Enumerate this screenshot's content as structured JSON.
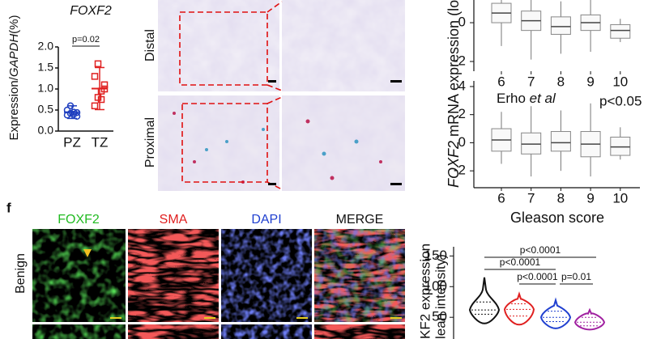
{
  "chart_data": [
    {
      "type": "dot",
      "title": "FOXF2",
      "y_label": [
        "Expression/",
        "GAPDH",
        "(%)"
      ],
      "categories": [
        "PZ",
        "TZ"
      ],
      "values": [
        [
          0.38,
          0.42,
          0.45,
          0.35,
          0.5,
          0.6,
          0.4,
          0.44
        ],
        [
          0.6,
          0.8,
          0.95,
          1.0,
          1.3,
          1.6,
          0.75,
          1.1
        ]
      ],
      "colors": [
        "#1f3fbf",
        "#e02020"
      ],
      "means": [
        0.45,
        1.01
      ],
      "errors": [
        0.15,
        0.5
      ],
      "ylim": [
        0,
        2
      ],
      "yticks": [
        {
          "value": 0,
          "label": "0.0"
        },
        {
          "value": 0.5,
          "label": "0.5"
        },
        {
          "value": 1,
          "label": "1.0"
        },
        {
          "value": 1.5,
          "label": "1.5"
        },
        {
          "value": 2,
          "label": "2.0"
        }
      ],
      "annotation": "p=0.02"
    },
    {
      "type": "box",
      "y_label": [
        "FOXF2",
        " mRNA expression (lo"
      ],
      "categories": [
        "6",
        "7",
        "8",
        "9",
        "10"
      ],
      "q1": [
        0,
        -0.4,
        -0.6,
        -0.4,
        -0.8
      ],
      "median": [
        0.5,
        0.1,
        -0.2,
        0,
        -0.4
      ],
      "q3": [
        1.0,
        0.6,
        0.3,
        0.4,
        -0.1
      ],
      "whisker_low": [
        -1.2,
        -1.9,
        -1.6,
        -1.5,
        -1.0
      ],
      "whisker_high": [
        1.2,
        1.2,
        1.1,
        1.2,
        0.2
      ],
      "ylim": [
        -2.5,
        1.17
      ],
      "yticks": [
        -2,
        0
      ]
    },
    {
      "type": "box",
      "annotation": [
        "Erho ",
        "et al"
      ],
      "p_value": "p<0.05",
      "x_label": "Gleason score",
      "categories": [
        "6",
        "7",
        "8",
        "9",
        "10"
      ],
      "q1": [
        -0.6,
        -0.8,
        -0.6,
        -1.0,
        -0.9
      ],
      "median": [
        0.2,
        -0.1,
        0.0,
        -0.1,
        -0.3
      ],
      "q3": [
        1.0,
        0.7,
        0.8,
        0.8,
        0.4
      ],
      "whisker_low": [
        -1.5,
        -2.4,
        -2.0,
        -2.4,
        -1.2
      ],
      "whisker_high": [
        2.2,
        2.6,
        2.3,
        2.8,
        1.1
      ],
      "ylim": [
        -3.2,
        4.4
      ],
      "yticks": [
        -2,
        0,
        2,
        4
      ]
    },
    {
      "type": "violin",
      "y_label": [
        "KF2 expression",
        "lean intensity)"
      ],
      "colors": [
        "#111111",
        "#e02020",
        "#2040d0",
        "#a020a0"
      ],
      "q1": [
        55,
        52,
        43,
        36
      ],
      "median": [
        62,
        63,
        50,
        42
      ],
      "q3": [
        75,
        72,
        60,
        50
      ],
      "min": [
        40,
        38,
        32,
        30
      ],
      "max": [
        115,
        88,
        78,
        62
      ],
      "ylim": [
        12,
        165
      ],
      "yticks": [
        50,
        100,
        150
      ],
      "comparisons": [
        "p<0.0001",
        "p<0.0001",
        "p<0.0001",
        "p=0.01"
      ]
    }
  ],
  "figure": {
    "panel": "f",
    "distal": "Distal",
    "proximal": "Proximal",
    "channels": [
      "FOXF2",
      "SMA",
      "DAPI",
      "MERGE"
    ],
    "channel_colors": [
      "#22bb22",
      "#e02020",
      "#2040d0",
      "#111111"
    ],
    "row": "Benign"
  }
}
